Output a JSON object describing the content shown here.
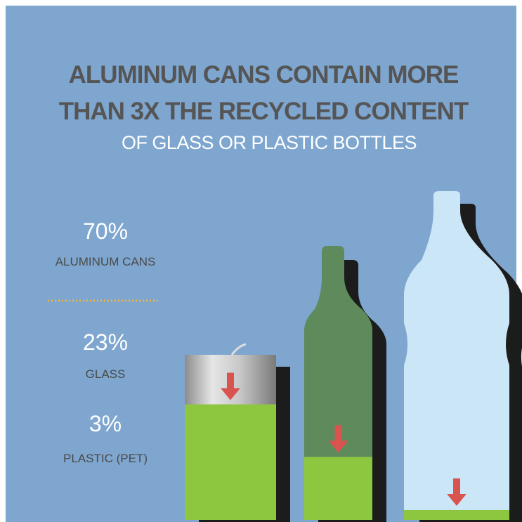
{
  "chart_data": {
    "type": "fill",
    "title": [
      "ALUMINUM CANS CONTAIN MORE",
      "THAN 3X THE RECYCLED CONTENT"
    ],
    "subtitle": "OF GLASS OR PLASTIC BOTTLES",
    "categories": [
      "ALUMINUM CANS",
      "GLASS",
      "PLASTIC (PET)"
    ],
    "values": [
      70,
      23,
      3
    ],
    "value_labels": [
      "70%",
      "23%",
      "3%"
    ],
    "color": "#8dc63f"
  }
}
